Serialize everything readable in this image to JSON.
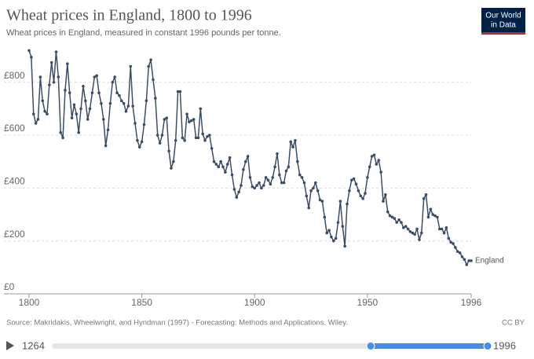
{
  "chart_data": {
    "type": "line",
    "title": "Wheat prices in England, 1800 to 1996",
    "subtitle": "Wheat prices in England, measured in constant 1996 pounds per tonne.",
    "source": "Source: Makridakis, Wheelwright, and Hyndman (1997) - Forecasting: Methods and Applications. Wiley.",
    "license": "CC BY",
    "logo": [
      "Our World",
      "in Data"
    ],
    "timeline": {
      "start": "1264",
      "end": "1996"
    },
    "x": [
      1800,
      1801,
      1802,
      1803,
      1804,
      1805,
      1806,
      1807,
      1808,
      1809,
      1810,
      1811,
      1812,
      1813,
      1814,
      1815,
      1816,
      1817,
      1818,
      1819,
      1820,
      1821,
      1822,
      1823,
      1824,
      1825,
      1826,
      1827,
      1828,
      1829,
      1830,
      1831,
      1832,
      1833,
      1834,
      1835,
      1836,
      1837,
      1838,
      1839,
      1840,
      1841,
      1842,
      1843,
      1844,
      1845,
      1846,
      1847,
      1848,
      1849,
      1850,
      1851,
      1852,
      1853,
      1854,
      1855,
      1856,
      1857,
      1858,
      1859,
      1860,
      1861,
      1862,
      1863,
      1864,
      1865,
      1866,
      1867,
      1868,
      1869,
      1870,
      1871,
      1872,
      1873,
      1874,
      1875,
      1876,
      1877,
      1878,
      1879,
      1880,
      1881,
      1882,
      1883,
      1884,
      1885,
      1886,
      1887,
      1888,
      1889,
      1890,
      1891,
      1892,
      1893,
      1894,
      1895,
      1896,
      1897,
      1898,
      1899,
      1900,
      1901,
      1902,
      1903,
      1904,
      1905,
      1906,
      1907,
      1908,
      1909,
      1910,
      1911,
      1912,
      1913,
      1914,
      1915,
      1916,
      1917,
      1918,
      1919,
      1920,
      1921,
      1922,
      1923,
      1924,
      1925,
      1926,
      1927,
      1928,
      1929,
      1930,
      1931,
      1932,
      1933,
      1934,
      1935,
      1936,
      1937,
      1938,
      1939,
      1940,
      1941,
      1942,
      1943,
      1944,
      1945,
      1946,
      1947,
      1948,
      1949,
      1950,
      1951,
      1952,
      1953,
      1954,
      1955,
      1956,
      1957,
      1958,
      1959,
      1960,
      1961,
      1962,
      1963,
      1964,
      1965,
      1966,
      1967,
      1968,
      1969,
      1970,
      1971,
      1972,
      1973,
      1974,
      1975,
      1976,
      1977,
      1978,
      1979,
      1980,
      1981,
      1982,
      1983,
      1984,
      1985,
      1986,
      1987,
      1988,
      1989,
      1990,
      1991,
      1992,
      1993,
      1994,
      1995,
      1996
    ],
    "series": [
      {
        "name": "England",
        "color": "#3c4e66",
        "values": [
          920,
          895,
          680,
          645,
          660,
          820,
          730,
          690,
          680,
          790,
          875,
          800,
          915,
          820,
          610,
          590,
          770,
          870,
          760,
          665,
          715,
          680,
          610,
          700,
          785,
          730,
          660,
          700,
          760,
          820,
          825,
          760,
          720,
          660,
          560,
          620,
          720,
          800,
          820,
          760,
          750,
          730,
          720,
          690,
          710,
          860,
          710,
          645,
          580,
          555,
          575,
          640,
          730,
          860,
          885,
          810,
          740,
          600,
          570,
          600,
          660,
          665,
          540,
          475,
          500,
          580,
          765,
          765,
          590,
          580,
          680,
          650,
          655,
          660,
          590,
          590,
          700,
          605,
          580,
          595,
          600,
          550,
          500,
          490,
          480,
          500,
          480,
          460,
          490,
          515,
          450,
          395,
          365,
          385,
          410,
          470,
          500,
          520,
          440,
          405,
          400,
          410,
          420,
          400,
          410,
          440,
          430,
          415,
          440,
          480,
          530,
          450,
          420,
          420,
          465,
          480,
          575,
          555,
          580,
          500,
          450,
          440,
          420,
          370,
          325,
          390,
          400,
          420,
          390,
          355,
          350,
          290,
          230,
          240,
          215,
          200,
          210,
          270,
          350,
          255,
          180,
          340,
          390,
          430,
          435,
          415,
          390,
          370,
          360,
          380,
          440,
          480,
          520,
          525,
          490,
          505,
          460,
          350,
          375,
          310,
          295,
          290,
          285,
          270,
          280,
          270,
          250,
          255,
          245,
          235,
          230,
          225,
          245,
          205,
          230,
          360,
          375,
          290,
          320,
          300,
          295,
          290,
          245,
          245,
          230,
          250,
          210,
          195,
          190,
          175,
          160,
          155,
          140,
          130,
          110,
          125,
          125
        ]
      }
    ],
    "xlim": [
      1800,
      1996
    ],
    "xticks": [
      1800,
      1850,
      1900,
      1950,
      1996
    ],
    "ylim": [
      0,
      930
    ],
    "yticks": [
      {
        "value": 0,
        "label": "£0"
      },
      {
        "value": 200,
        "label": "£200"
      },
      {
        "value": 400,
        "label": "£400"
      },
      {
        "value": 600,
        "label": "£600"
      },
      {
        "value": 800,
        "label": "£800"
      }
    ],
    "grid": true
  }
}
